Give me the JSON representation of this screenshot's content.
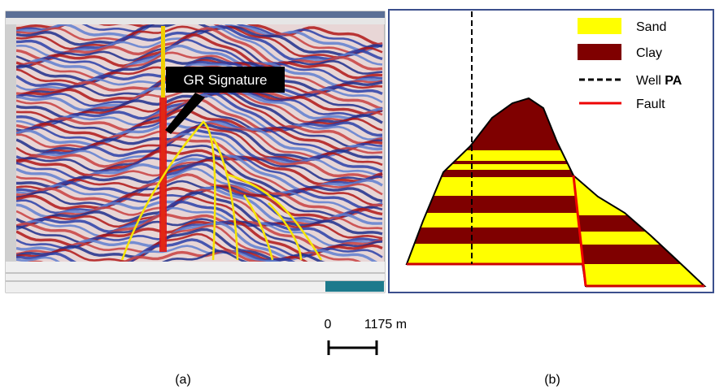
{
  "panel_a": {
    "annotation": "GR Signature",
    "caption": "(a)"
  },
  "panel_b": {
    "legend": [
      {
        "label": "Sand"
      },
      {
        "label": "Clay"
      },
      {
        "label": "Well",
        "bold": "PA"
      },
      {
        "label": "Fault"
      }
    ],
    "caption": "(b)"
  },
  "scale_bar": {
    "start": "0",
    "end": "1175 m"
  }
}
